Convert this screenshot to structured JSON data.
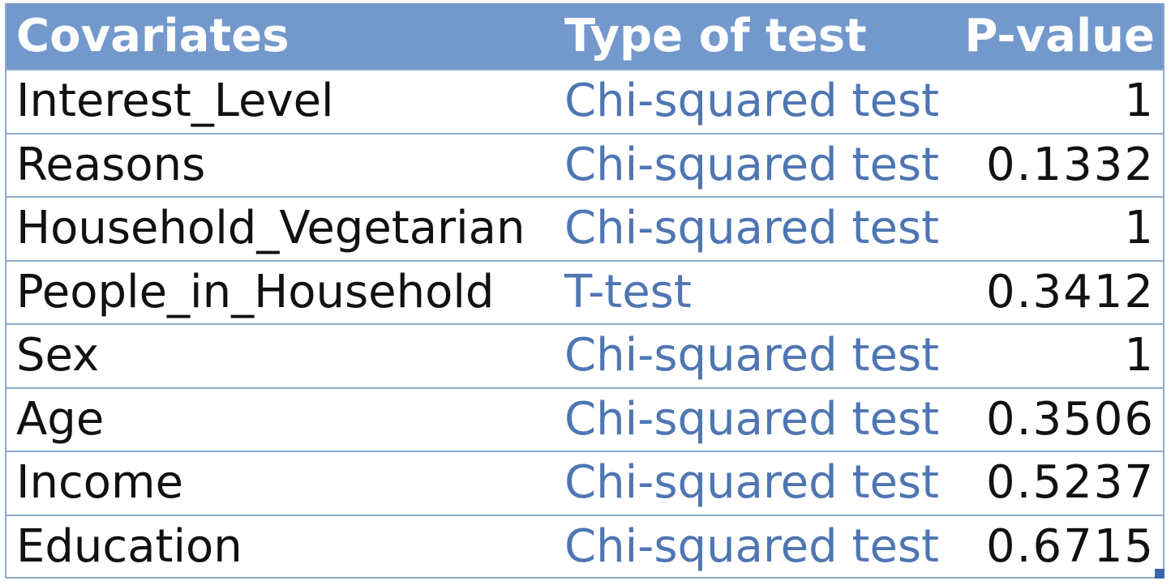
{
  "table": {
    "headers": {
      "covariates": "Covariates",
      "type_of_test": "Type of test",
      "p_value": "P-value"
    },
    "rows": [
      {
        "covariate": "Interest_Level",
        "test": "Chi-squared test",
        "p": "1"
      },
      {
        "covariate": "Reasons",
        "test": "Chi-squared test",
        "p": "0.1332"
      },
      {
        "covariate": "Household_Vegetarian",
        "test": "Chi-squared test",
        "p": "1"
      },
      {
        "covariate": "People_in_Household",
        "test": "T-test",
        "p": "0.3412"
      },
      {
        "covariate": "Sex",
        "test": "Chi-squared test",
        "p": "1"
      },
      {
        "covariate": "Age",
        "test": "Chi-squared test",
        "p": "0.3506"
      },
      {
        "covariate": "Income",
        "test": "Chi-squared test",
        "p": "0.5237"
      },
      {
        "covariate": "Education",
        "test": "Chi-squared test",
        "p": "0.6715"
      }
    ]
  },
  "colors": {
    "header_bg": "#7399cc",
    "header_text": "#ffffff",
    "test_text": "#4f76b2",
    "border": "#8fa9cf"
  }
}
